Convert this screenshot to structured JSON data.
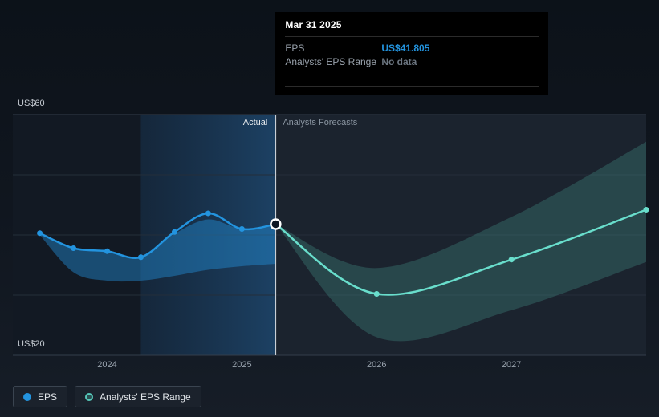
{
  "tooltip": {
    "date": "Mar 31 2025",
    "rows": [
      {
        "label": "EPS",
        "value": "US$41.805",
        "value_color": "#2394DF"
      },
      {
        "label": "Analysts' EPS Range",
        "value": "No data",
        "value_color": "#6C7681"
      }
    ]
  },
  "legend": [
    {
      "label": "EPS",
      "color": "#2394DF"
    },
    {
      "label": "Analysts' EPS Range",
      "color": "#56C9BA"
    }
  ],
  "chart_data": {
    "type": "line",
    "title": "EPS actual vs analysts forecasts",
    "xlim": [
      2023.3,
      2028.0
    ],
    "ylim": [
      20,
      60
    ],
    "grid_y": [
      60,
      50,
      40,
      30,
      20
    ],
    "y_label_top": "US$60",
    "y_label_bottom": "US$20",
    "x_ticks": [
      {
        "label": "2024",
        "x": 2024
      },
      {
        "label": "2025",
        "x": 2025
      },
      {
        "label": "2026",
        "x": 2026
      },
      {
        "label": "2027",
        "x": 2027
      }
    ],
    "divider_x": 2025.25,
    "highlight_range": [
      2024.25,
      2025.25
    ],
    "highlight_colors": [
      "rgba(33,96,155,0.20)",
      "rgba(45,130,205,0.38)"
    ],
    "region_colors": {
      "actual": "#121923",
      "forecast": "#1B232E"
    },
    "grid_colors": {
      "major": "#333E4B",
      "minor": "#242E3A"
    },
    "divider_color": "#C9CFD6",
    "actual_label": "Actual",
    "forecast_label": "Analysts Forecasts",
    "series": [
      {
        "name": "EPS (actual)",
        "color": "#2394DF",
        "x": [
          2023.5,
          2023.75,
          2024.0,
          2024.25,
          2024.5,
          2024.75,
          2025.0,
          2025.25
        ],
        "values": [
          40.3,
          37.8,
          37.3,
          36.3,
          40.5,
          43.6,
          41.0,
          41.805
        ],
        "marker_x": [
          2023.5,
          2023.75,
          2024.0,
          2024.25,
          2024.5,
          2024.75,
          2025.0
        ]
      },
      {
        "name": "EPS (analysts forecast)",
        "color": "#69DECC",
        "x": [
          2025.25,
          2026.0,
          2027.0,
          2028.0
        ],
        "values": [
          41.805,
          30.2,
          35.9,
          44.2
        ],
        "marker_x": [
          2026.0,
          2027.0,
          2028.0
        ]
      }
    ],
    "bands": [
      {
        "name": "EPS range (actual)",
        "color": "rgba(35,148,223,0.42)",
        "x": [
          2023.5,
          2023.75,
          2024.0,
          2024.25,
          2024.5,
          2024.75,
          2025.0,
          2025.25
        ],
        "upper": [
          40.3,
          37.8,
          37.3,
          36.3,
          40.2,
          42.6,
          41.0,
          41.8
        ],
        "lower": [
          40.0,
          33.8,
          32.4,
          32.4,
          33.2,
          34.2,
          34.8,
          35.2
        ]
      },
      {
        "name": "Analysts EPS range (forecast)",
        "color": "rgba(95,214,197,0.20)",
        "x": [
          2025.25,
          2026.0,
          2027.0,
          2028.0
        ],
        "upper": [
          41.805,
          34.5,
          43.0,
          55.5
        ],
        "lower": [
          41.805,
          23.0,
          27.5,
          35.5
        ]
      }
    ],
    "selected_point": {
      "series": "EPS (actual)",
      "x": 2025.25,
      "value": 41.805
    }
  }
}
